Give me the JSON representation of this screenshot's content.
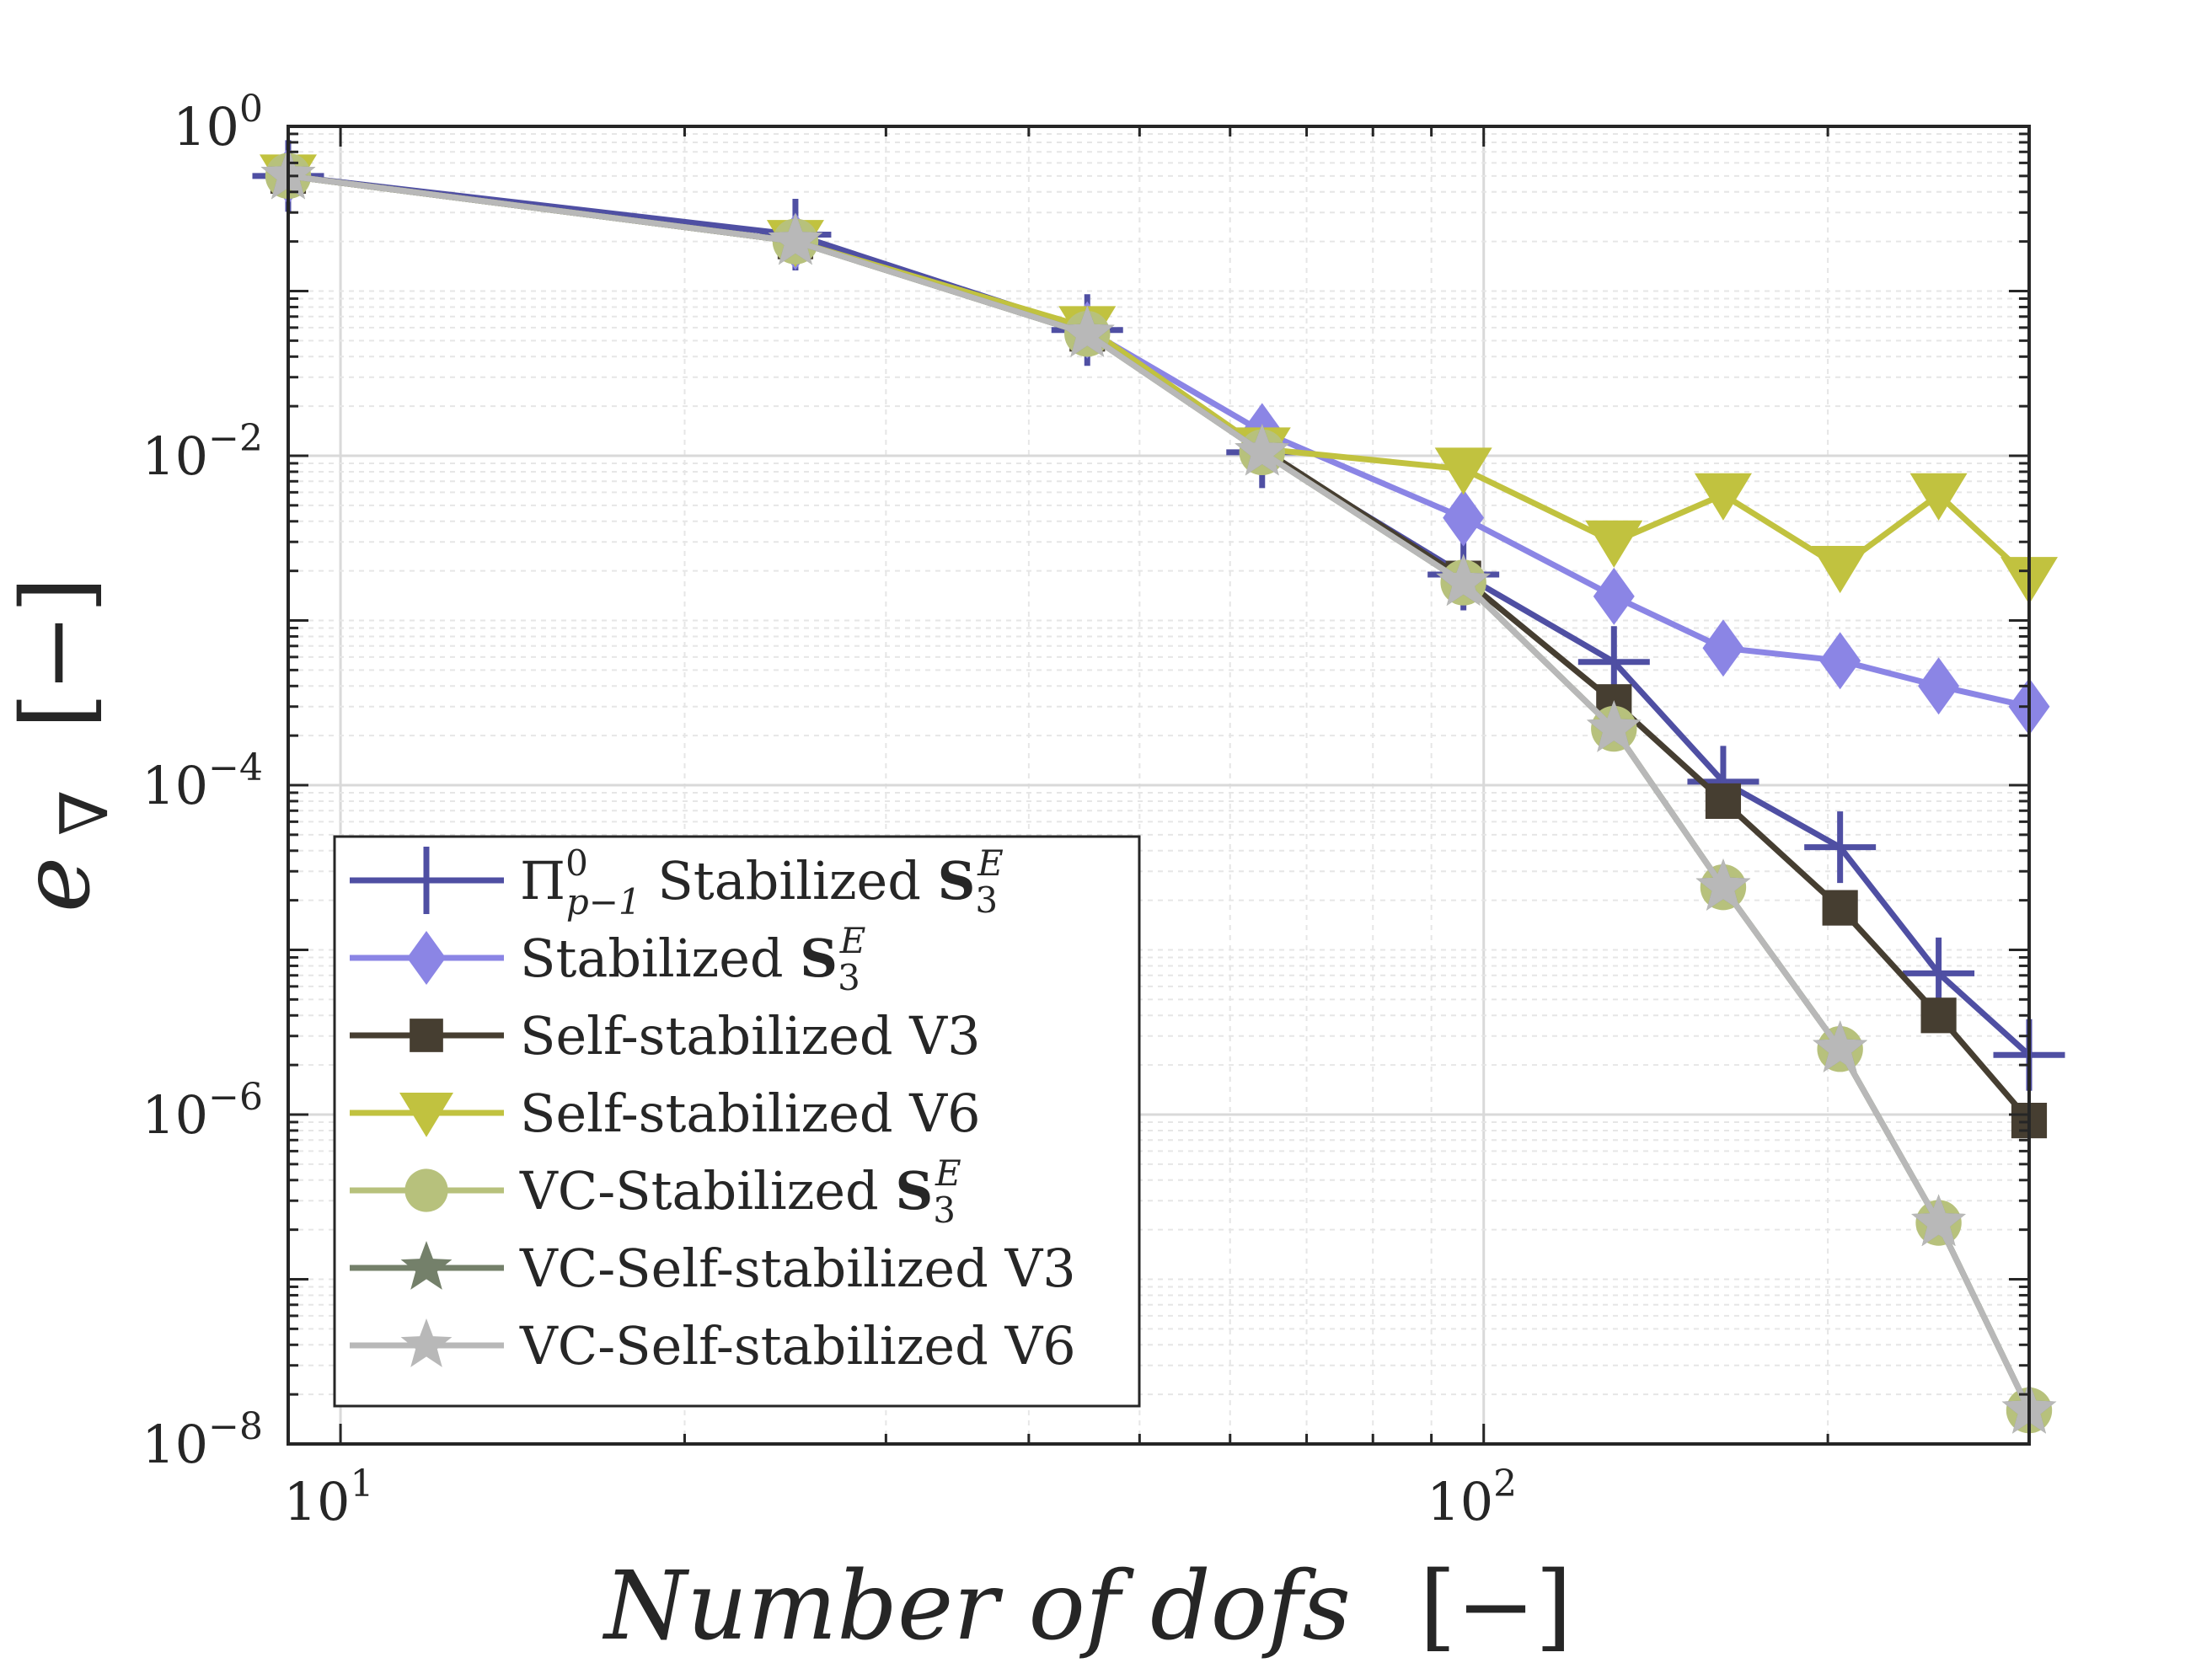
{
  "chart_data": {
    "type": "line",
    "xscale": "log",
    "yscale": "log",
    "xlim": [
      9,
      300
    ],
    "ylim": [
      1e-08,
      1
    ],
    "xlabel": "Number of dofs",
    "xlabel_unit": "[−]",
    "ylabel_base": "e",
    "ylabel_sub": "∇",
    "ylabel_unit": "[−]",
    "grid": true,
    "legend_position": "bottom-left",
    "x_ticks": [
      {
        "base": "10",
        "exp": "1",
        "value": 10
      },
      {
        "base": "10",
        "exp": "2",
        "value": 100
      }
    ],
    "y_ticks": [
      {
        "base": "10",
        "exp": "0",
        "value": 1
      },
      {
        "base": "10",
        "exp": "−2",
        "value": 0.01
      },
      {
        "base": "10",
        "exp": "−4",
        "value": 0.0001
      },
      {
        "base": "10",
        "exp": "−6",
        "value": 1e-06
      },
      {
        "base": "10",
        "exp": "−8",
        "value": 1e-08
      }
    ],
    "x": [
      9,
      25,
      45,
      64,
      96,
      130,
      162,
      205,
      250,
      300
    ],
    "series": [
      {
        "name": "Π⁰ p−1 Stabilized S₃ᴱ",
        "label_parts": {
          "pi": "Π",
          "pi_sup": "0",
          "pi_sub": "p−1",
          "mid": " Stabilized ",
          "bold": "S",
          "sub": "3",
          "sup": "E"
        },
        "color": "#4f4fa3",
        "marker": "plus",
        "values": [
          0.5,
          0.22,
          0.058,
          0.0105,
          0.0019,
          0.00056,
          0.000105,
          4.2e-05,
          7.2e-06,
          2.3e-06
        ]
      },
      {
        "name": "Stabilized S₃ᴱ",
        "label_parts": {
          "pre": "Stabilized ",
          "bold": "S",
          "sub": "3",
          "sup": "E"
        },
        "color": "#8b85e5",
        "marker": "diamond",
        "values": [
          0.5,
          0.2,
          0.058,
          0.014,
          0.0042,
          0.0014,
          0.00068,
          0.00057,
          0.0004,
          0.0003
        ]
      },
      {
        "name": "Self-stabilized V3",
        "color": "#463e31",
        "marker": "square",
        "values": [
          0.5,
          0.2,
          0.055,
          0.011,
          0.0018,
          0.00032,
          8e-05,
          1.8e-05,
          4e-06,
          9.2e-07
        ]
      },
      {
        "name": "Self-stabilized V6",
        "color": "#c1c23f",
        "marker": "triangle-down",
        "values": [
          0.5,
          0.2,
          0.06,
          0.011,
          0.0083,
          0.003,
          0.0058,
          0.0021,
          0.0058,
          0.0018
        ]
      },
      {
        "name": "VC-Stabilized S₃ᴱ",
        "label_parts": {
          "pre": "VC-Stabilized ",
          "bold": "S",
          "sub": "3",
          "sup": "E"
        },
        "color": "#b7c17c",
        "marker": "circle",
        "values": [
          0.5,
          0.2,
          0.055,
          0.0105,
          0.0017,
          0.00022,
          2.4e-05,
          2.5e-06,
          2.2e-07,
          1.6e-08
        ]
      },
      {
        "name": "VC-Self-stabilized V3",
        "color": "#74806a",
        "marker": "star",
        "values": [
          0.5,
          0.2,
          0.055,
          0.0105,
          0.0017,
          0.00022,
          2.4e-05,
          2.5e-06,
          2.2e-07,
          1.6e-08
        ]
      },
      {
        "name": "VC-Self-stabilized V6",
        "color": "#b8b8b8",
        "marker": "star",
        "values": [
          0.5,
          0.2,
          0.055,
          0.0105,
          0.0017,
          0.00022,
          2.4e-05,
          2.5e-06,
          2.2e-07,
          1.6e-08
        ]
      }
    ]
  }
}
